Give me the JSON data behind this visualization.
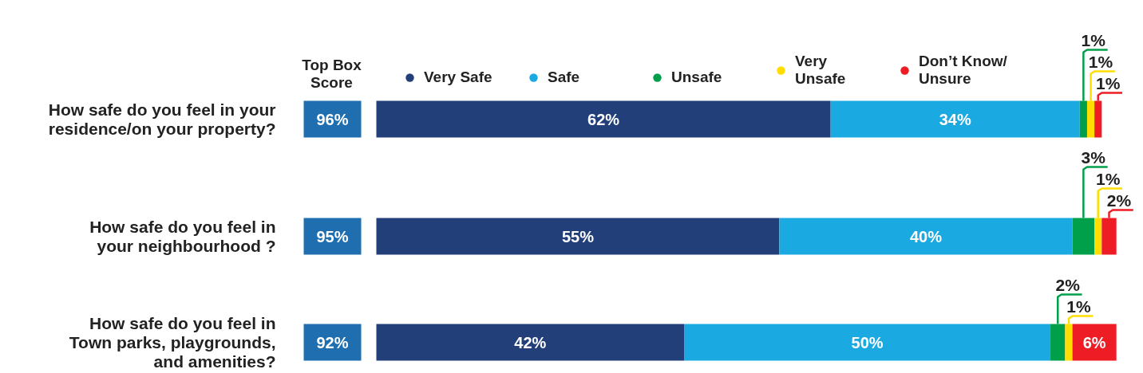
{
  "chart_data": {
    "type": "bar",
    "orientation": "horizontal",
    "stacked": true,
    "legend": "top",
    "categories": [
      "How safe do you feel in your\nresidence/on your property?",
      "How safe do you feel in\nyour neighbourhood ?",
      "How safe do you feel in\nTown parks, playgrounds,\nand amenities?"
    ],
    "series": [
      {
        "name": "Very Safe",
        "color": "#223f7a",
        "values": [
          62,
          55,
          42
        ],
        "value_labels": [
          "62%",
          "55%",
          "42%"
        ]
      },
      {
        "name": "Safe",
        "color": "#1aa9e0",
        "values": [
          34,
          40,
          50
        ],
        "value_labels": [
          "34%",
          "40%",
          "50%"
        ]
      },
      {
        "name": "Unsafe",
        "color": "#00a04b",
        "values": [
          1,
          3,
          2
        ],
        "value_labels": [
          "1%",
          "3%",
          "2%"
        ]
      },
      {
        "name": "Very\nUnsafe",
        "color": "#ffdd00",
        "values": [
          1,
          1,
          1
        ],
        "value_labels": [
          "1%",
          "1%",
          "1%"
        ]
      },
      {
        "name": "Don’t Know/\nUnsure",
        "color": "#ee1c25",
        "values": [
          1,
          2,
          6
        ],
        "value_labels": [
          "1%",
          "2%",
          "6%"
        ]
      }
    ],
    "annotations": [
      "Top Box Score",
      "96%",
      "95%",
      "92%"
    ]
  }
}
